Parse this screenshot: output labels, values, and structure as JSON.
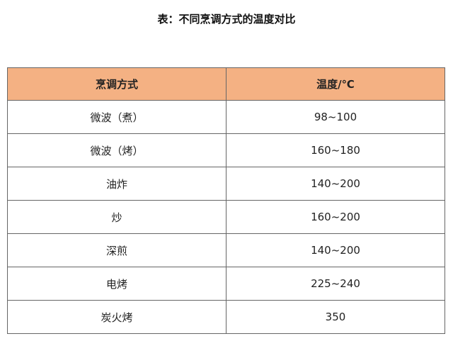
{
  "title": "表：不同烹调方式的温度对比",
  "header_color": "#F4B183",
  "columns": [
    "烹调方式",
    "温度/℃"
  ],
  "rows": [
    [
      "微波（煮）",
      "98~100"
    ],
    [
      "微波（烤）",
      "160~180"
    ],
    [
      "油炸",
      "140~200"
    ],
    [
      "炒",
      "160~200"
    ],
    [
      "深煎",
      "140~200"
    ],
    [
      "电烤",
      "225~240"
    ],
    [
      "炭火烤",
      "350"
    ]
  ]
}
